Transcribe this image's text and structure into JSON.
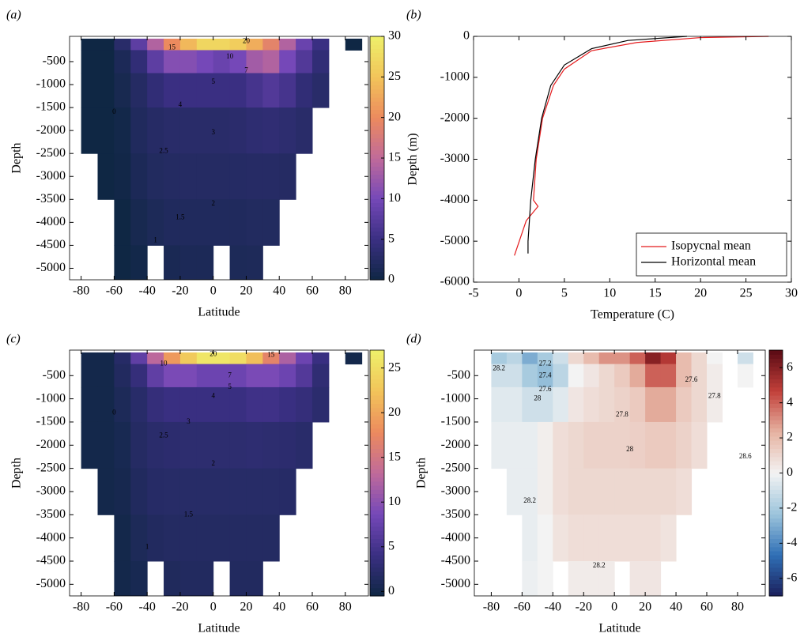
{
  "chart_data": [
    {
      "type": "heatmap",
      "label": "(a)",
      "xlabel": "Latitude",
      "ylabel": "Depth",
      "xlim": [
        -87,
        94
      ],
      "ylim": [
        -5250,
        50
      ],
      "xticks": [
        -80,
        -60,
        -40,
        -20,
        0,
        20,
        40,
        60,
        80
      ],
      "yticks": [
        -500,
        -1000,
        -1500,
        -2000,
        -2500,
        -3000,
        -3500,
        -4000,
        -4500,
        -5000
      ],
      "clim": [
        0,
        30
      ],
      "colorbar_ticks": [
        0,
        5,
        10,
        15,
        20,
        25,
        30
      ],
      "colormap": [
        "#0f2744",
        "#3a2f82",
        "#7548b8",
        "#c06a9a",
        "#ec8a5e",
        "#f2c45a",
        "#eef06a"
      ],
      "x_edges": [
        -80,
        -70,
        -60,
        -50,
        -40,
        -30,
        -20,
        -10,
        0,
        10,
        20,
        30,
        40,
        50,
        60,
        70,
        80,
        90
      ],
      "y_edges": [
        0,
        -250,
        -750,
        -1500,
        -2500,
        -3500,
        -4500,
        -5300
      ],
      "z": [
        [
          0,
          0,
          3,
          8,
          14,
          20,
          24,
          27,
          27,
          26,
          23,
          19,
          14,
          9,
          5,
          null,
          0
        ],
        [
          0,
          0,
          1.5,
          4,
          8,
          11,
          11,
          10,
          9,
          10,
          13,
          14,
          10,
          7,
          4,
          null,
          null
        ],
        [
          0,
          0,
          1,
          2.5,
          4,
          5,
          5,
          5,
          5,
          5,
          6,
          7,
          6,
          4,
          3,
          null,
          null
        ],
        [
          0,
          0,
          0.5,
          2,
          2.7,
          3,
          3,
          3,
          3,
          3.2,
          3.6,
          3.8,
          3.5,
          3,
          null,
          null,
          null
        ],
        [
          null,
          0,
          0.3,
          1.5,
          2.2,
          2.4,
          2.5,
          2.5,
          2.5,
          2.6,
          2.7,
          2.7,
          2.5,
          null,
          null,
          null,
          null
        ],
        [
          null,
          null,
          0,
          1,
          1.6,
          2,
          2,
          2,
          2,
          2,
          2.2,
          2.2,
          null,
          null,
          null,
          null,
          null
        ],
        [
          null,
          null,
          0,
          0.5,
          null,
          1.3,
          1.5,
          1.5,
          null,
          1.6,
          1.7,
          null,
          null,
          null,
          null,
          null,
          null
        ]
      ],
      "contour_labels": [
        {
          "value": 20,
          "x": 20,
          "y": -60
        },
        {
          "value": 15,
          "x": -25,
          "y": -200
        },
        {
          "value": 10,
          "x": 10,
          "y": -400
        },
        {
          "value": 7,
          "x": 20,
          "y": -700
        },
        {
          "value": 5,
          "x": 0,
          "y": -950
        },
        {
          "value": 4,
          "x": -20,
          "y": -1450
        },
        {
          "value": 3,
          "x": 0,
          "y": -2050
        },
        {
          "value": 2.5,
          "x": -30,
          "y": -2450
        },
        {
          "value": 2,
          "x": 0,
          "y": -3600
        },
        {
          "value": 1.5,
          "x": -20,
          "y": -3900
        },
        {
          "value": 1,
          "x": -35,
          "y": -4400
        },
        {
          "value": 0,
          "x": -60,
          "y": -1600
        }
      ]
    },
    {
      "type": "line",
      "label": "(b)",
      "xlabel": "Temperature (C)",
      "ylabel": "Depth (m)",
      "xlim": [
        -5,
        30
      ],
      "ylim": [
        -6000,
        0
      ],
      "xticks": [
        -5,
        0,
        5,
        10,
        15,
        20,
        25,
        30
      ],
      "yticks": [
        0,
        -1000,
        -2000,
        -3000,
        -4000,
        -5000,
        -6000
      ],
      "series": [
        {
          "name": "Isopycnal mean",
          "color": "#e41a1c",
          "x": [
            27.5,
            20,
            13,
            8,
            5,
            3.8,
            2.6,
            1.9,
            1.6,
            2.1,
            0.8,
            -0.5
          ],
          "values": [
            0,
            -30,
            -150,
            -350,
            -800,
            -1200,
            -2000,
            -3000,
            -4000,
            -4150,
            -4500,
            -5350
          ]
        },
        {
          "name": "Horizontal mean",
          "color": "#000000",
          "x": [
            18.5,
            12,
            8,
            5,
            3.5,
            2.5,
            1.8,
            1.3,
            1,
            1
          ],
          "values": [
            0,
            -100,
            -300,
            -700,
            -1200,
            -2000,
            -3000,
            -4000,
            -5000,
            -5300
          ]
        }
      ],
      "legend": "lower right"
    },
    {
      "type": "heatmap",
      "label": "(c)",
      "xlabel": "Latitude",
      "ylabel": "Depth",
      "xlim": [
        -87,
        94
      ],
      "ylim": [
        -5250,
        50
      ],
      "xticks": [
        -80,
        -60,
        -40,
        -20,
        0,
        20,
        40,
        60,
        80
      ],
      "yticks": [
        -500,
        -1000,
        -1500,
        -2000,
        -2500,
        -3000,
        -3500,
        -4000,
        -4500,
        -5000
      ],
      "clim": [
        -0.5,
        27
      ],
      "colorbar_ticks": [
        0,
        5,
        10,
        15,
        20,
        25
      ],
      "colormap": [
        "#0f2744",
        "#3a2f82",
        "#7548b8",
        "#c06a9a",
        "#ec8a5e",
        "#f2c45a",
        "#eef06a"
      ],
      "x_edges": [
        -80,
        -70,
        -60,
        -50,
        -40,
        -30,
        -20,
        -10,
        0,
        10,
        20,
        30,
        40,
        50,
        60,
        70,
        80,
        90
      ],
      "y_edges": [
        0,
        -250,
        -750,
        -1500,
        -2500,
        -3500,
        -4500,
        -5300
      ],
      "z": [
        [
          0,
          0,
          2,
          7,
          13,
          19,
          23,
          26,
          26,
          25,
          22,
          17,
          12,
          8,
          4,
          null,
          0
        ],
        [
          0,
          0,
          1.5,
          3.5,
          7,
          9,
          9,
          8,
          8,
          8,
          9,
          9,
          8,
          6,
          3,
          null,
          null
        ],
        [
          0,
          0,
          1,
          2.2,
          3.5,
          4,
          4,
          4,
          4,
          4,
          4.5,
          4.5,
          4,
          3.5,
          2.5,
          null,
          null
        ],
        [
          0,
          0,
          0.5,
          1.8,
          2.4,
          2.6,
          2.7,
          2.7,
          2.7,
          2.7,
          2.8,
          2.7,
          2.6,
          2.3,
          null,
          null,
          null
        ],
        [
          null,
          0,
          0.3,
          1.4,
          2,
          2.1,
          2.1,
          2.1,
          2.1,
          2.1,
          2.1,
          2.1,
          2,
          null,
          null,
          null,
          null
        ],
        [
          null,
          null,
          0,
          1,
          1.5,
          1.7,
          1.7,
          1.7,
          1.7,
          1.7,
          1.7,
          1.7,
          null,
          null,
          null,
          null,
          null
        ],
        [
          null,
          null,
          0,
          0.5,
          null,
          1.3,
          1.5,
          1.5,
          null,
          1.5,
          1.5,
          null,
          null,
          null,
          null,
          null,
          null
        ]
      ],
      "contour_labels": [
        {
          "value": 20,
          "x": 0,
          "y": -40
        },
        {
          "value": 15,
          "x": 35,
          "y": -60
        },
        {
          "value": 10,
          "x": -30,
          "y": -250
        },
        {
          "value": 7,
          "x": 10,
          "y": -500
        },
        {
          "value": 5,
          "x": 10,
          "y": -750
        },
        {
          "value": 4,
          "x": 0,
          "y": -950
        },
        {
          "value": 3,
          "x": -15,
          "y": -1500
        },
        {
          "value": 2.5,
          "x": -30,
          "y": -1800
        },
        {
          "value": 2,
          "x": 0,
          "y": -2400
        },
        {
          "value": 1.5,
          "x": -15,
          "y": -3500
        },
        {
          "value": 1,
          "x": -40,
          "y": -4200
        },
        {
          "value": 0,
          "x": -60,
          "y": -1300
        }
      ]
    },
    {
      "type": "heatmap",
      "label": "(d)",
      "xlabel": "Latitude",
      "ylabel": "Depth",
      "xlim": [
        -91,
        98
      ],
      "ylim": [
        -5250,
        50
      ],
      "xticks": [
        -80,
        -60,
        -40,
        -20,
        0,
        20,
        40,
        60,
        80
      ],
      "yticks": [
        -500,
        -1000,
        -1500,
        -2000,
        -2500,
        -3000,
        -3500,
        -4000,
        -4500,
        -5000
      ],
      "clim": [
        -7,
        7
      ],
      "colorbar_ticks": [
        -6,
        -4,
        -2,
        0,
        2,
        4,
        6
      ],
      "colormap": [
        "#1b1f5c",
        "#2f6fb5",
        "#9cc4dc",
        "#f3f3f3",
        "#e6b3a2",
        "#c2403a",
        "#5a0a14"
      ],
      "x_edges": [
        -80,
        -70,
        -60,
        -50,
        -40,
        -30,
        -20,
        -10,
        0,
        10,
        20,
        30,
        40,
        50,
        60,
        70,
        80,
        90
      ],
      "y_edges": [
        0,
        -250,
        -750,
        -1500,
        -2500,
        -3500,
        -4500,
        -5300
      ],
      "z": [
        [
          -2,
          -1.5,
          -3,
          -2,
          -1,
          1,
          2,
          3,
          3,
          4,
          6,
          5,
          2,
          1,
          0,
          null,
          -1
        ],
        [
          -1,
          -1,
          -2,
          -2.5,
          -1.5,
          0,
          0.5,
          1,
          1.5,
          2.5,
          4,
          4,
          2,
          1,
          0.3,
          null,
          0
        ],
        [
          -0.5,
          -0.5,
          -1,
          -1,
          -0.5,
          0.5,
          0.8,
          1,
          1.2,
          1.5,
          2.5,
          2.5,
          1.5,
          1,
          0.3,
          null,
          null
        ],
        [
          -0.3,
          -0.3,
          -0.3,
          0.2,
          0.8,
          1,
          1.2,
          1.2,
          1.2,
          1.3,
          1.5,
          1.5,
          1.2,
          0.8,
          null,
          null,
          null
        ],
        [
          null,
          -0.3,
          -0.3,
          0.2,
          0.8,
          1,
          1,
          1,
          1,
          1,
          1,
          1,
          0.8,
          null,
          null,
          null,
          null
        ],
        [
          null,
          null,
          -0.3,
          0,
          0.6,
          0.8,
          0.8,
          0.8,
          0.8,
          0.8,
          0.8,
          0.6,
          null,
          null,
          null,
          null,
          null
        ],
        [
          null,
          null,
          -0.2,
          0,
          null,
          0.3,
          0.3,
          0.3,
          null,
          0.5,
          0.5,
          null,
          null,
          null,
          null,
          null,
          null
        ]
      ],
      "contour_labels": [
        {
          "value": 28.2,
          "x": -75,
          "y": -350
        },
        {
          "value": 27.2,
          "x": -45,
          "y": -250
        },
        {
          "value": 27.4,
          "x": -45,
          "y": -500
        },
        {
          "value": 27.6,
          "x": -45,
          "y": -800
        },
        {
          "value": 27.8,
          "x": 5,
          "y": -1350
        },
        {
          "value": 28,
          "x": -50,
          "y": -1000
        },
        {
          "value": 28,
          "x": 10,
          "y": -2100
        },
        {
          "value": 28.2,
          "x": -55,
          "y": -3200
        },
        {
          "value": 28.2,
          "x": -10,
          "y": -4600
        },
        {
          "value": 27.8,
          "x": 65,
          "y": -950
        },
        {
          "value": 27.6,
          "x": 50,
          "y": -600
        },
        {
          "value": 28.6,
          "x": 85,
          "y": -2250
        }
      ]
    }
  ]
}
